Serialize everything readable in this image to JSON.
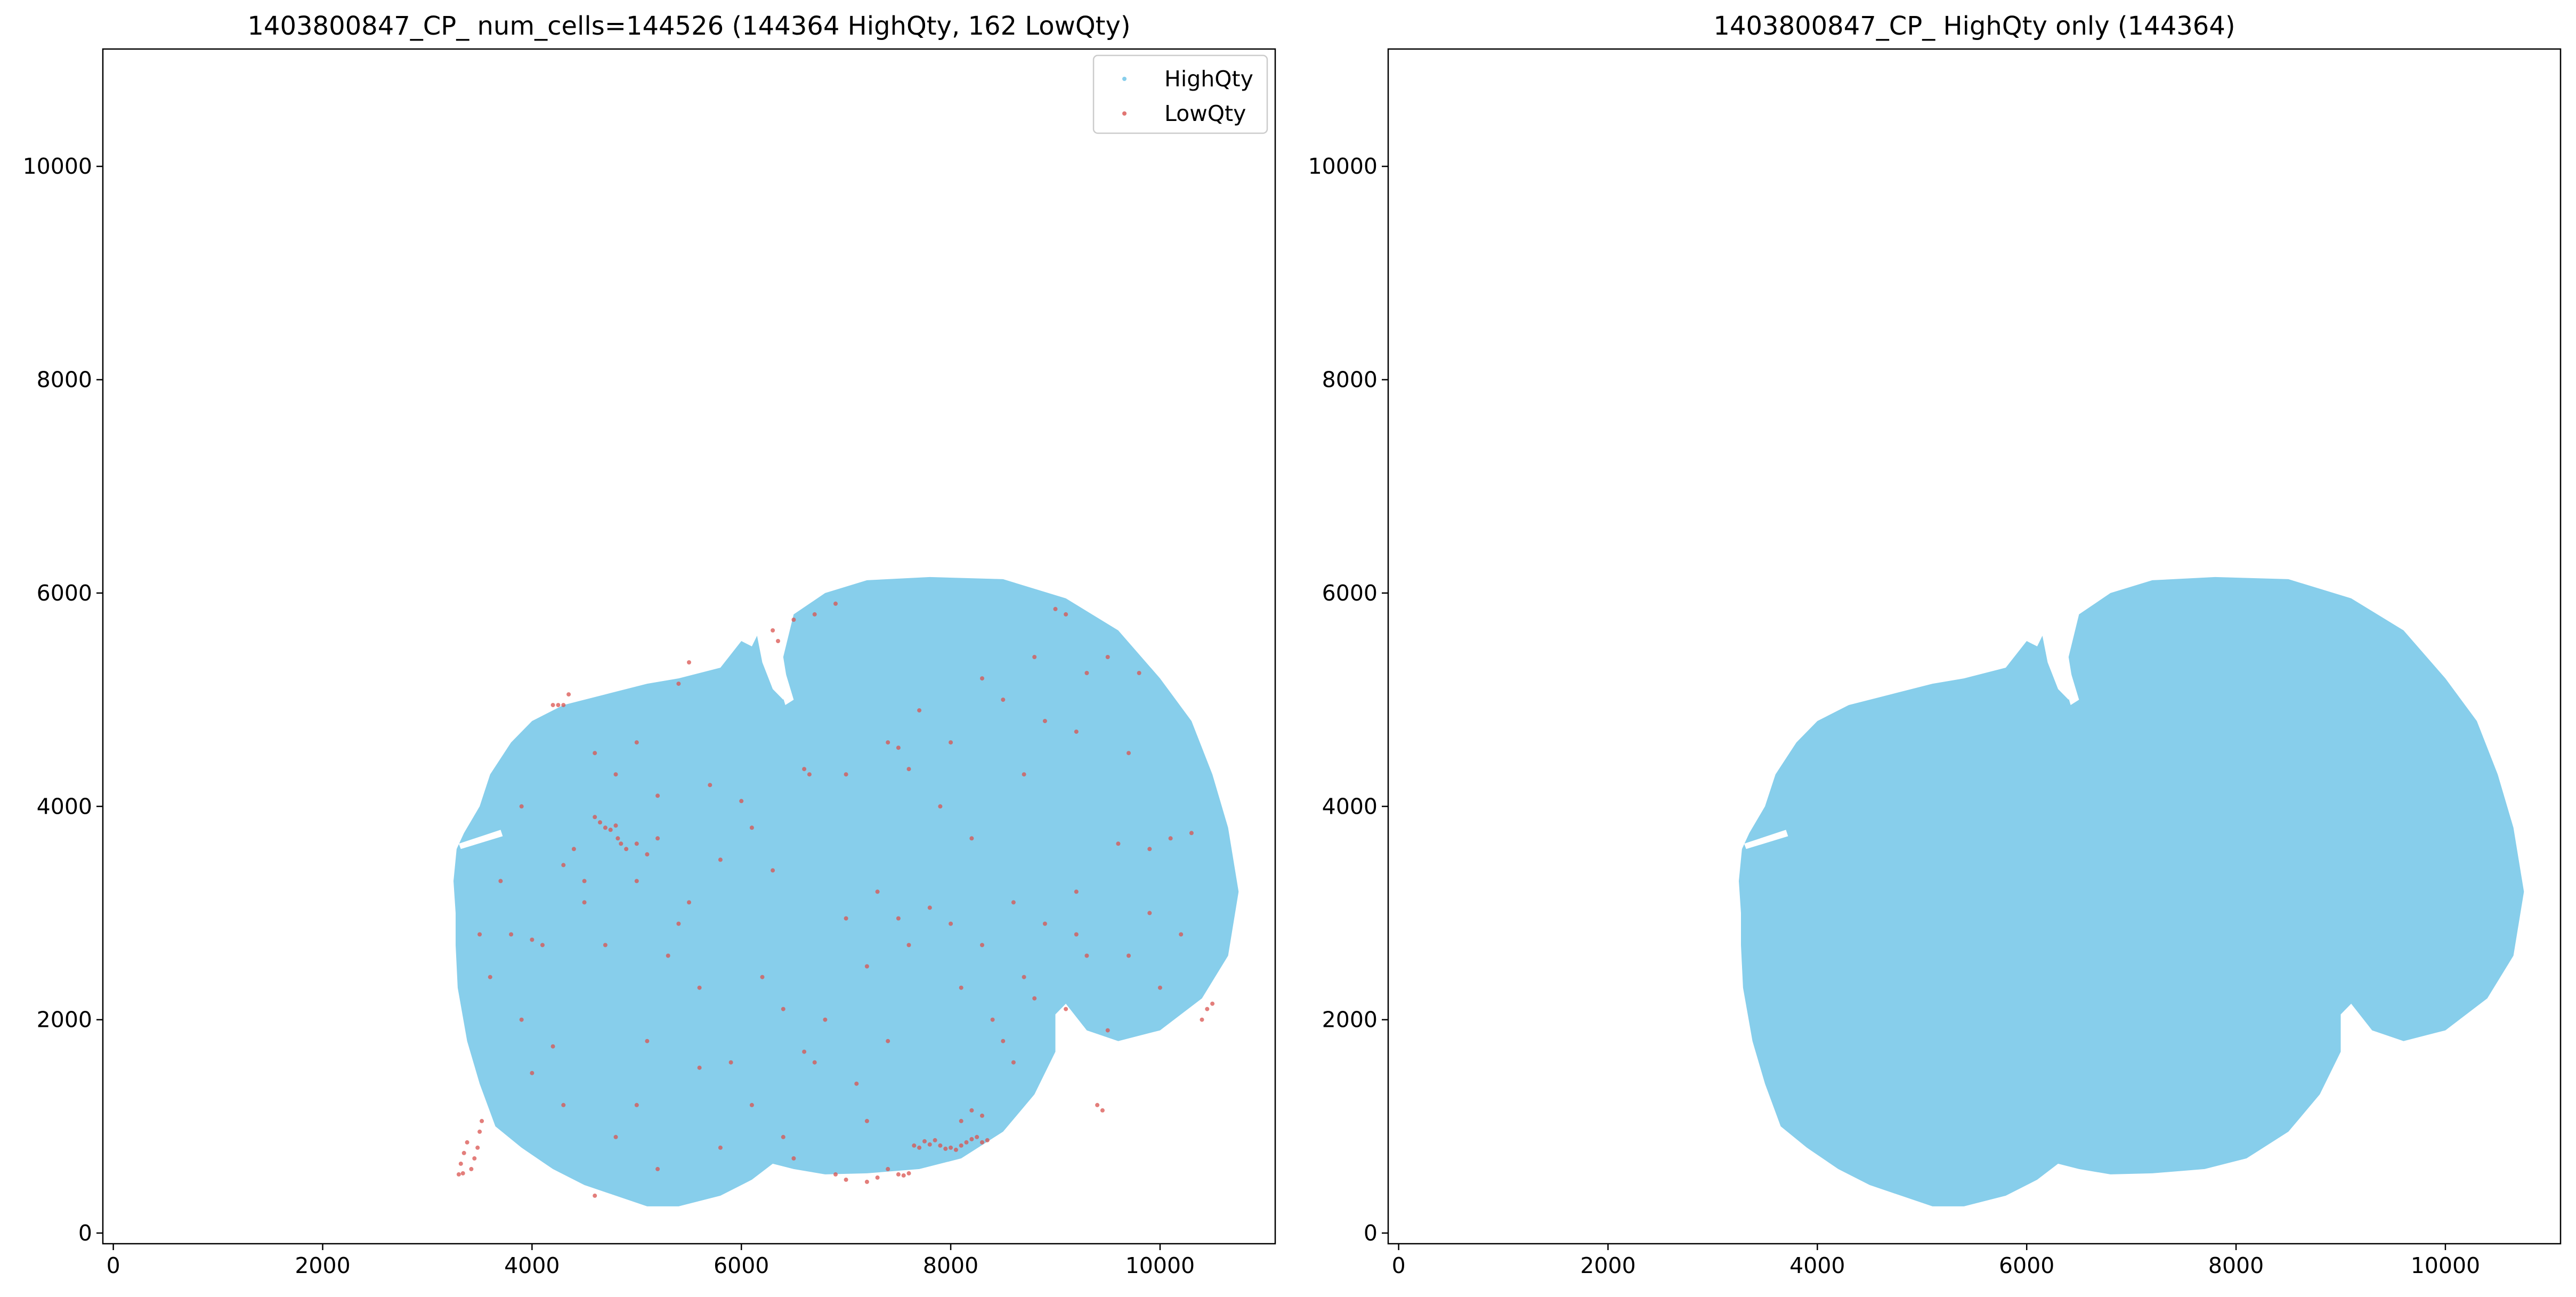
{
  "colors": {
    "high_qty": "#87ceeb",
    "low_qty": "#d9534f",
    "axes": "#000000",
    "background": "#ffffff"
  },
  "chart_data": [
    {
      "type": "scatter",
      "title": "1403800847_CP_ num_cells=144526 (144364 HighQty, 162 LowQty)",
      "xlabel": "",
      "ylabel": "",
      "xlim": [
        -100,
        11100
      ],
      "ylim": [
        -100,
        11100
      ],
      "xticks": [
        0,
        2000,
        4000,
        6000,
        8000,
        10000
      ],
      "yticks": [
        0,
        2000,
        4000,
        6000,
        8000,
        10000
      ],
      "grid": false,
      "legend": {
        "placement": "top-right",
        "entries": [
          "HighQty",
          "LowQty"
        ]
      },
      "series": [
        {
          "name": "HighQty",
          "color": "#87ceeb",
          "count": 144364,
          "region": {
            "description": "dense tissue section",
            "approx_extent_x": [
              3200,
              10800
            ],
            "approx_extent_y": [
              200,
              6150
            ]
          }
        },
        {
          "name": "LowQty",
          "color": "#d9534f",
          "count": 162,
          "points": [
            [
              3300,
              550
            ],
            [
              3320,
              650
            ],
            [
              3350,
              750
            ],
            [
              3380,
              850
            ],
            [
              3420,
              600
            ],
            [
              3450,
              700
            ],
            [
              3480,
              800
            ],
            [
              3500,
              950
            ],
            [
              3520,
              1050
            ],
            [
              3340,
              560
            ],
            [
              4200,
              4950
            ],
            [
              4250,
              4950
            ],
            [
              4300,
              4950
            ],
            [
              4350,
              5050
            ],
            [
              4700,
              3800
            ],
            [
              4750,
              3780
            ],
            [
              4800,
              3820
            ],
            [
              4820,
              3700
            ],
            [
              4900,
              3600
            ],
            [
              5000,
              3650
            ],
            [
              5100,
              3550
            ],
            [
              5200,
              3700
            ],
            [
              3900,
              4000
            ],
            [
              4300,
              3450
            ],
            [
              4500,
              3100
            ],
            [
              4700,
              2700
            ],
            [
              3500,
              2800
            ],
            [
              3800,
              2800
            ],
            [
              4000,
              2750
            ],
            [
              4100,
              2700
            ],
            [
              4200,
              1750
            ],
            [
              5100,
              1800
            ],
            [
              5000,
              1200
            ],
            [
              4600,
              350
            ],
            [
              5400,
              5150
            ],
            [
              5500,
              5350
            ],
            [
              6000,
              4050
            ],
            [
              6300,
              5650
            ],
            [
              6350,
              5550
            ],
            [
              6500,
              5750
            ],
            [
              6600,
              4350
            ],
            [
              6650,
              4300
            ],
            [
              6700,
              5800
            ],
            [
              6900,
              5900
            ],
            [
              7000,
              4300
            ],
            [
              7400,
              4600
            ],
            [
              7500,
              4550
            ],
            [
              7600,
              4350
            ],
            [
              7700,
              4900
            ],
            [
              7900,
              4000
            ],
            [
              8000,
              4600
            ],
            [
              8200,
              3700
            ],
            [
              8700,
              4300
            ],
            [
              8800,
              5400
            ],
            [
              9000,
              5850
            ],
            [
              9100,
              5800
            ],
            [
              9200,
              4700
            ],
            [
              9300,
              5250
            ],
            [
              9500,
              5400
            ],
            [
              9600,
              3650
            ],
            [
              9700,
              4500
            ],
            [
              9800,
              5250
            ],
            [
              9900,
              3600
            ],
            [
              10100,
              3700
            ],
            [
              10300,
              3750
            ],
            [
              10400,
              2000
            ],
            [
              10450,
              2100
            ],
            [
              10500,
              2150
            ],
            [
              7000,
              2950
            ],
            [
              7500,
              2950
            ],
            [
              7800,
              3050
            ],
            [
              8000,
              2900
            ],
            [
              8300,
              2700
            ],
            [
              8600,
              3100
            ],
            [
              8700,
              2400
            ],
            [
              8800,
              2200
            ],
            [
              8900,
              2900
            ],
            [
              9200,
              3200
            ],
            [
              9200,
              2800
            ],
            [
              9300,
              2600
            ],
            [
              6600,
              1700
            ],
            [
              6700,
              1600
            ],
            [
              7200,
              1050
            ],
            [
              7400,
              600
            ],
            [
              7500,
              550
            ],
            [
              7550,
              540
            ],
            [
              7600,
              560
            ],
            [
              7650,
              820
            ],
            [
              7700,
              800
            ],
            [
              7750,
              860
            ],
            [
              7800,
              830
            ],
            [
              7850,
              870
            ],
            [
              7900,
              820
            ],
            [
              7950,
              790
            ],
            [
              8000,
              800
            ],
            [
              8050,
              780
            ],
            [
              8100,
              820
            ],
            [
              8150,
              850
            ],
            [
              8200,
              880
            ],
            [
              8250,
              900
            ],
            [
              8300,
              850
            ],
            [
              8350,
              870
            ],
            [
              8100,
              1050
            ],
            [
              8200,
              1150
            ],
            [
              8300,
              1100
            ],
            [
              9400,
              1200
            ],
            [
              9450,
              1150
            ],
            [
              6900,
              550
            ],
            [
              7000,
              500
            ],
            [
              7200,
              480
            ],
            [
              7300,
              520
            ],
            [
              6500,
              700
            ],
            [
              5600,
              1550
            ],
            [
              5900,
              1600
            ],
            [
              6200,
              2400
            ],
            [
              6400,
              2100
            ],
            [
              5600,
              2300
            ],
            [
              5300,
              2600
            ],
            [
              5500,
              3100
            ],
            [
              5400,
              2900
            ],
            [
              4500,
              3300
            ],
            [
              4400,
              3600
            ],
            [
              4600,
              3900
            ],
            [
              4650,
              3850
            ],
            [
              5000,
              3300
            ],
            [
              4850,
              3650
            ],
            [
              7300,
              3200
            ],
            [
              7600,
              2700
            ],
            [
              7200,
              2500
            ],
            [
              8100,
              2300
            ],
            [
              8400,
              2000
            ],
            [
              8500,
              1800
            ],
            [
              8600,
              1600
            ],
            [
              6800,
              2000
            ],
            [
              6300,
              3400
            ],
            [
              6100,
              3800
            ],
            [
              5800,
              3500
            ],
            [
              5700,
              4200
            ],
            [
              5200,
              4100
            ],
            [
              5000,
              4600
            ],
            [
              4800,
              4300
            ],
            [
              4600,
              4500
            ],
            [
              3700,
              3300
            ],
            [
              3600,
              2400
            ],
            [
              3900,
              2000
            ],
            [
              4000,
              1500
            ],
            [
              4300,
              1200
            ],
            [
              4800,
              900
            ],
            [
              5200,
              600
            ],
            [
              5800,
              800
            ],
            [
              6100,
              1200
            ],
            [
              6400,
              900
            ],
            [
              7100,
              1400
            ],
            [
              7400,
              1800
            ],
            [
              9700,
              2600
            ],
            [
              9900,
              3000
            ],
            [
              10200,
              2800
            ],
            [
              10000,
              2300
            ],
            [
              9500,
              1900
            ],
            [
              9100,
              2100
            ],
            [
              8900,
              4800
            ],
            [
              8500,
              5000
            ],
            [
              8300,
              5200
            ]
          ]
        }
      ]
    },
    {
      "type": "scatter",
      "title": "1403800847_CP_ HighQty only (144364)",
      "xlabel": "",
      "ylabel": "",
      "xlim": [
        -100,
        11100
      ],
      "ylim": [
        -100,
        11100
      ],
      "xticks": [
        0,
        2000,
        4000,
        6000,
        8000,
        10000
      ],
      "yticks": [
        0,
        2000,
        4000,
        6000,
        8000,
        10000
      ],
      "grid": false,
      "series": [
        {
          "name": "HighQty",
          "color": "#87ceeb",
          "count": 144364,
          "region": {
            "description": "dense tissue section",
            "approx_extent_x": [
              3200,
              10800
            ],
            "approx_extent_y": [
              200,
              6150
            ]
          }
        }
      ]
    }
  ]
}
